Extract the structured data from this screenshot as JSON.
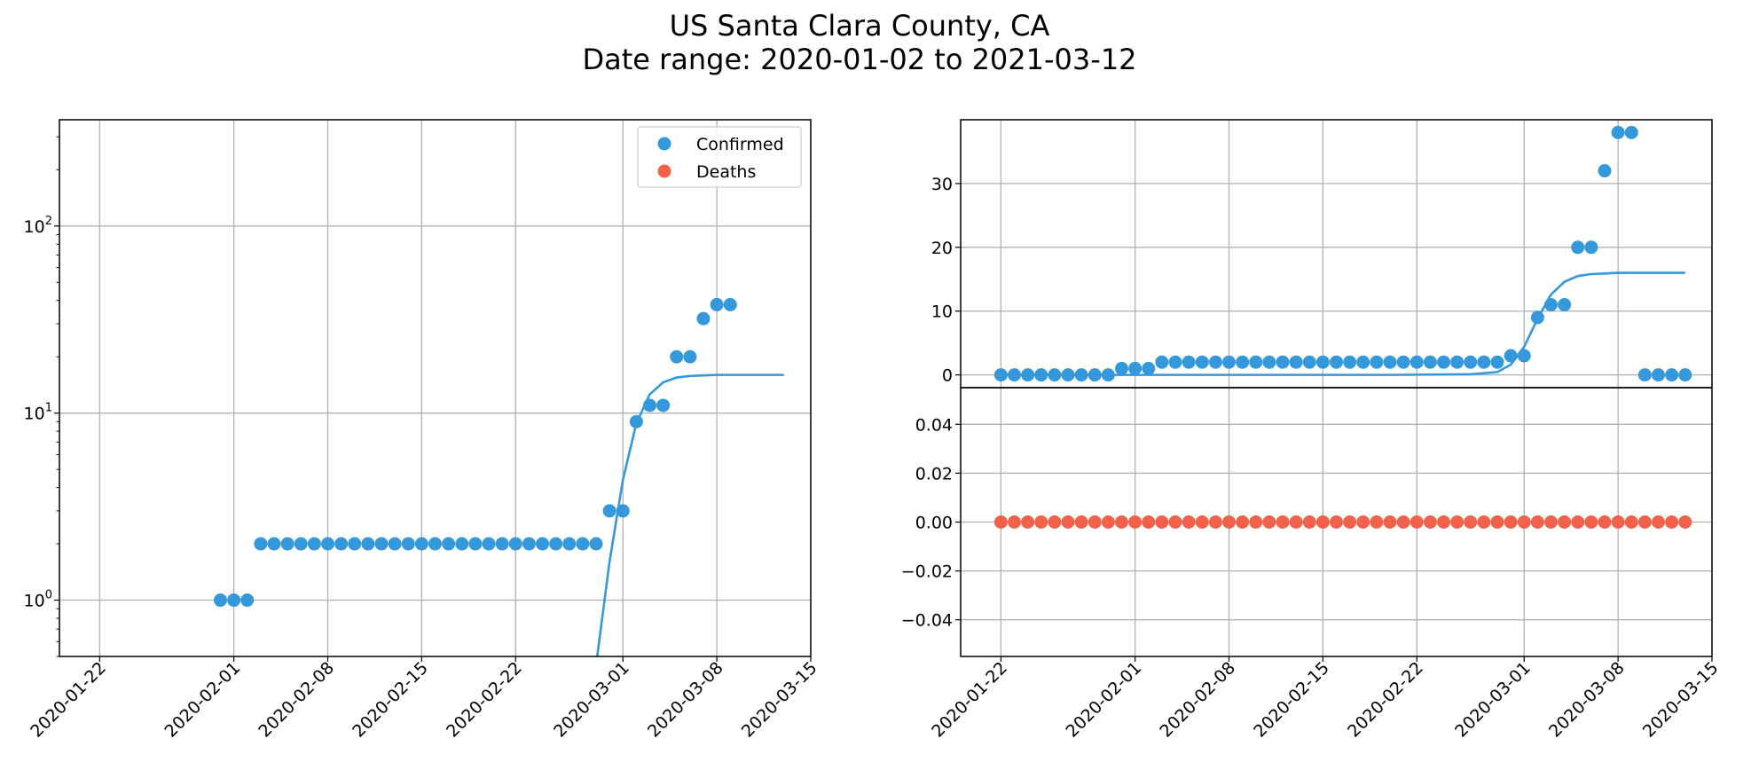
{
  "figure": {
    "title_line1": "US Santa Clara County, CA",
    "title_line2": "Date range: 2020-01-02 to 2021-03-12"
  },
  "colors": {
    "confirmed": "#3498db",
    "deaths": "#f1624a",
    "grid": "#b0b0b0",
    "axis": "#000000"
  },
  "chart_data": [
    {
      "id": "left-log-panel",
      "type": "scatter",
      "yscale": "log",
      "xlim": [
        "2020-01-19",
        "2020-03-15"
      ],
      "ylim": [
        0.5,
        370
      ],
      "grid": true,
      "legend_position": "top-right",
      "xticks": [
        "2020-01-22",
        "2020-02-01",
        "2020-02-08",
        "2020-02-15",
        "2020-02-22",
        "2020-03-01",
        "2020-03-08",
        "2020-03-15"
      ],
      "yticks": [
        {
          "value": 1,
          "base": "10",
          "exp": "0"
        },
        {
          "value": 10,
          "base": "10",
          "exp": "1"
        },
        {
          "value": 100,
          "base": "10",
          "exp": "2"
        }
      ],
      "series": [
        {
          "name": "Confirmed",
          "color": "#3498db",
          "points": [
            [
              "2020-01-31",
              1
            ],
            [
              "2020-02-01",
              1
            ],
            [
              "2020-02-02",
              1
            ],
            [
              "2020-02-03",
              2
            ],
            [
              "2020-02-04",
              2
            ],
            [
              "2020-02-05",
              2
            ],
            [
              "2020-02-06",
              2
            ],
            [
              "2020-02-07",
              2
            ],
            [
              "2020-02-08",
              2
            ],
            [
              "2020-02-09",
              2
            ],
            [
              "2020-02-10",
              2
            ],
            [
              "2020-02-11",
              2
            ],
            [
              "2020-02-12",
              2
            ],
            [
              "2020-02-13",
              2
            ],
            [
              "2020-02-14",
              2
            ],
            [
              "2020-02-15",
              2
            ],
            [
              "2020-02-16",
              2
            ],
            [
              "2020-02-17",
              2
            ],
            [
              "2020-02-18",
              2
            ],
            [
              "2020-02-19",
              2
            ],
            [
              "2020-02-20",
              2
            ],
            [
              "2020-02-21",
              2
            ],
            [
              "2020-02-22",
              2
            ],
            [
              "2020-02-23",
              2
            ],
            [
              "2020-02-24",
              2
            ],
            [
              "2020-02-25",
              2
            ],
            [
              "2020-02-26",
              2
            ],
            [
              "2020-02-27",
              2
            ],
            [
              "2020-02-28",
              2
            ],
            [
              "2020-02-29",
              3
            ],
            [
              "2020-03-01",
              3
            ],
            [
              "2020-03-02",
              9
            ],
            [
              "2020-03-03",
              11
            ],
            [
              "2020-03-04",
              11
            ],
            [
              "2020-03-05",
              20
            ],
            [
              "2020-03-06",
              20
            ],
            [
              "2020-03-07",
              32
            ],
            [
              "2020-03-08",
              38
            ],
            [
              "2020-03-09",
              38
            ]
          ]
        },
        {
          "name": "Deaths",
          "color": "#f1624a",
          "points": []
        }
      ],
      "fit_line": {
        "series": "Confirmed",
        "points": [
          [
            "2020-02-28",
            0.45
          ],
          [
            "2020-02-29",
            1.6
          ],
          [
            "2020-03-01",
            4.4
          ],
          [
            "2020-03-02",
            8.8
          ],
          [
            "2020-03-03",
            12.6
          ],
          [
            "2020-03-04",
            14.6
          ],
          [
            "2020-03-05",
            15.5
          ],
          [
            "2020-03-06",
            15.8
          ],
          [
            "2020-03-07",
            15.9
          ],
          [
            "2020-03-08",
            16.0
          ],
          [
            "2020-03-10",
            16.0
          ],
          [
            "2020-03-13",
            16.0
          ]
        ]
      }
    },
    {
      "id": "right-top-panel",
      "type": "scatter",
      "yscale": "linear",
      "xlim": [
        "2020-01-19",
        "2020-03-15"
      ],
      "ylim": [
        -2,
        40
      ],
      "grid": true,
      "yticks": [
        0,
        10,
        20,
        30
      ],
      "series": [
        {
          "name": "Confirmed",
          "color": "#3498db",
          "points": [
            [
              "2020-01-22",
              0
            ],
            [
              "2020-01-23",
              0
            ],
            [
              "2020-01-24",
              0
            ],
            [
              "2020-01-25",
              0
            ],
            [
              "2020-01-26",
              0
            ],
            [
              "2020-01-27",
              0
            ],
            [
              "2020-01-28",
              0
            ],
            [
              "2020-01-29",
              0
            ],
            [
              "2020-01-30",
              0
            ],
            [
              "2020-01-31",
              1
            ],
            [
              "2020-02-01",
              1
            ],
            [
              "2020-02-02",
              1
            ],
            [
              "2020-02-03",
              2
            ],
            [
              "2020-02-04",
              2
            ],
            [
              "2020-02-05",
              2
            ],
            [
              "2020-02-06",
              2
            ],
            [
              "2020-02-07",
              2
            ],
            [
              "2020-02-08",
              2
            ],
            [
              "2020-02-09",
              2
            ],
            [
              "2020-02-10",
              2
            ],
            [
              "2020-02-11",
              2
            ],
            [
              "2020-02-12",
              2
            ],
            [
              "2020-02-13",
              2
            ],
            [
              "2020-02-14",
              2
            ],
            [
              "2020-02-15",
              2
            ],
            [
              "2020-02-16",
              2
            ],
            [
              "2020-02-17",
              2
            ],
            [
              "2020-02-18",
              2
            ],
            [
              "2020-02-19",
              2
            ],
            [
              "2020-02-20",
              2
            ],
            [
              "2020-02-21",
              2
            ],
            [
              "2020-02-22",
              2
            ],
            [
              "2020-02-23",
              2
            ],
            [
              "2020-02-24",
              2
            ],
            [
              "2020-02-25",
              2
            ],
            [
              "2020-02-26",
              2
            ],
            [
              "2020-02-27",
              2
            ],
            [
              "2020-02-28",
              2
            ],
            [
              "2020-02-29",
              3
            ],
            [
              "2020-03-01",
              3
            ],
            [
              "2020-03-02",
              9
            ],
            [
              "2020-03-03",
              11
            ],
            [
              "2020-03-04",
              11
            ],
            [
              "2020-03-05",
              20
            ],
            [
              "2020-03-06",
              20
            ],
            [
              "2020-03-07",
              32
            ],
            [
              "2020-03-08",
              38
            ],
            [
              "2020-03-09",
              38
            ],
            [
              "2020-03-10",
              0
            ],
            [
              "2020-03-11",
              0
            ],
            [
              "2020-03-12",
              0
            ],
            [
              "2020-03-13",
              0
            ]
          ]
        }
      ],
      "fit_line": {
        "series": "Confirmed",
        "points": [
          [
            "2020-01-22",
            0
          ],
          [
            "2020-02-20",
            0
          ],
          [
            "2020-02-26",
            0.1
          ],
          [
            "2020-02-28",
            0.45
          ],
          [
            "2020-02-29",
            1.6
          ],
          [
            "2020-03-01",
            4.4
          ],
          [
            "2020-03-02",
            8.8
          ],
          [
            "2020-03-03",
            12.6
          ],
          [
            "2020-03-04",
            14.6
          ],
          [
            "2020-03-05",
            15.5
          ],
          [
            "2020-03-06",
            15.8
          ],
          [
            "2020-03-07",
            15.9
          ],
          [
            "2020-03-08",
            16.0
          ],
          [
            "2020-03-10",
            16.0
          ],
          [
            "2020-03-13",
            16.0
          ]
        ]
      }
    },
    {
      "id": "right-bottom-panel",
      "type": "scatter",
      "yscale": "linear",
      "xlim": [
        "2020-01-19",
        "2020-03-15"
      ],
      "ylim": [
        -0.055,
        0.055
      ],
      "grid": true,
      "xticks": [
        "2020-01-22",
        "2020-02-01",
        "2020-02-08",
        "2020-02-15",
        "2020-02-22",
        "2020-03-01",
        "2020-03-08",
        "2020-03-15"
      ],
      "ytick_values": [
        -0.04,
        -0.02,
        0.0,
        0.02,
        0.04
      ],
      "ytick_labels": [
        "−0.04",
        "−0.02",
        "0.00",
        "0.02",
        "0.04"
      ],
      "series": [
        {
          "name": "Deaths",
          "color": "#f1624a",
          "x_start": "2020-01-22",
          "x_end": "2020-03-13",
          "value": 0
        }
      ]
    }
  ]
}
